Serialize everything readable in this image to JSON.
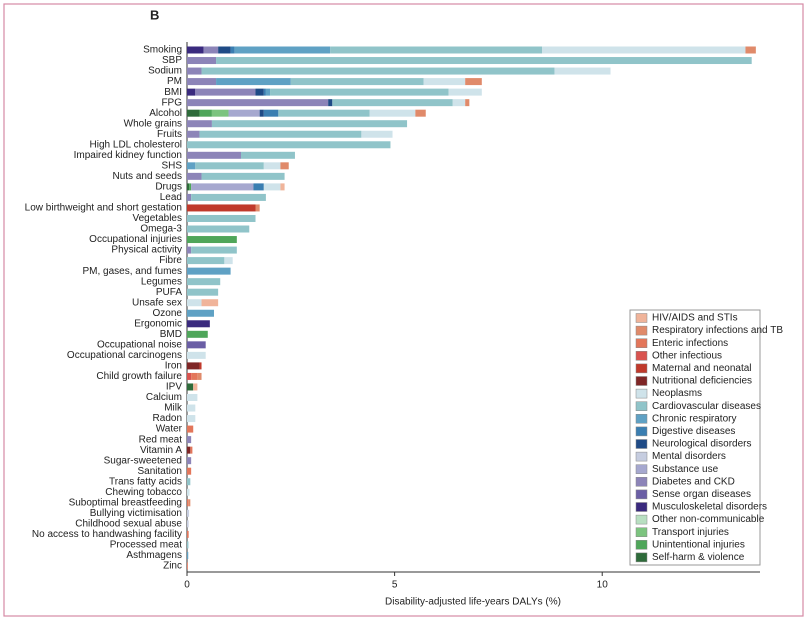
{
  "chart_data": {
    "type": "stacked-barh",
    "panel_label": "B",
    "x_label": "Disability-adjusted life-years DALYs (%)",
    "xlim": [
      0,
      13.8
    ],
    "xticks": [
      0,
      5,
      10
    ],
    "grid": false,
    "legend": "lower right",
    "categories": [
      "Smoking",
      "SBP",
      "Sodium",
      "PM",
      "BMI",
      "FPG",
      "Alcohol",
      "Whole grains",
      "Fruits",
      "High LDL cholesterol",
      "Impaired kidney function",
      "SHS",
      "Nuts and seeds",
      "Drugs",
      "Lead",
      "Low birthweight and short gestation",
      "Vegetables",
      "Omega-3",
      "Occupational injuries",
      "Physical activity",
      "Fibre",
      "PM, gases, and fumes",
      "Legumes",
      "PUFA",
      "Unsafe sex",
      "Ozone",
      "Ergonomic",
      "BMD",
      "Occupational noise",
      "Occupational carcinogens",
      "Iron",
      "Child growth failure",
      "IPV",
      "Calcium",
      "Milk",
      "Radon",
      "Water",
      "Red meat",
      "Vitamin A",
      "Sugar-sweetened",
      "Sanitation",
      "Trans fatty acids",
      "Chewing tobacco",
      "Suboptimal breastfeeding",
      "Bullying victimisation",
      "Childhood sexual abuse",
      "No access to handwashing facility",
      "Processed meat",
      "Asthmagens",
      "Zinc"
    ],
    "series": [
      {
        "name": "HIV/AIDS and STIs",
        "color": "#f0b49a",
        "values": [
          0,
          0,
          0,
          0,
          0,
          0,
          0,
          0,
          0,
          0,
          0,
          0,
          0,
          0.1,
          0,
          0,
          0,
          0,
          0,
          0,
          0,
          0,
          0,
          0,
          0.4,
          0,
          0,
          0,
          0,
          0,
          0,
          0,
          0.1,
          0,
          0,
          0,
          0,
          0,
          0,
          0,
          0,
          0,
          0,
          0,
          0,
          0,
          0,
          0,
          0,
          0
        ]
      },
      {
        "name": "Respiratory infections and TB",
        "color": "#e08a6a",
        "values": [
          0.25,
          0,
          0,
          0.4,
          0,
          0.1,
          0.25,
          0,
          0,
          0,
          0,
          0.2,
          0,
          0,
          0,
          0.1,
          0,
          0,
          0,
          0,
          0,
          0,
          0,
          0,
          0,
          0,
          0,
          0,
          0,
          0,
          0,
          0.1,
          0,
          0,
          0,
          0,
          0,
          0,
          0,
          0,
          0,
          0,
          0,
          0.05,
          0,
          0,
          0,
          0,
          0,
          0
        ]
      },
      {
        "name": "Enteric infections",
        "color": "#e3765a",
        "values": [
          0,
          0,
          0,
          0,
          0,
          0,
          0,
          0,
          0,
          0,
          0,
          0,
          0,
          0,
          0,
          0,
          0,
          0,
          0,
          0,
          0,
          0,
          0,
          0,
          0,
          0,
          0,
          0,
          0,
          0,
          0,
          0.15,
          0,
          0,
          0,
          0,
          0.15,
          0,
          0.05,
          0,
          0.1,
          0,
          0,
          0.03,
          0,
          0,
          0.04,
          0,
          0,
          0.02
        ]
      },
      {
        "name": "Other infectious",
        "color": "#d9534f",
        "values": [
          0,
          0,
          0,
          0,
          0,
          0,
          0,
          0,
          0,
          0,
          0,
          0,
          0,
          0,
          0,
          0,
          0,
          0,
          0,
          0,
          0,
          0,
          0,
          0,
          0,
          0,
          0,
          0,
          0,
          0,
          0,
          0.1,
          0,
          0,
          0,
          0,
          0,
          0,
          0,
          0,
          0,
          0,
          0,
          0,
          0,
          0,
          0,
          0,
          0,
          0
        ]
      },
      {
        "name": "Maternal and neonatal",
        "color": "#c0392b",
        "values": [
          0,
          0,
          0,
          0,
          0,
          0,
          0,
          0,
          0,
          0,
          0,
          0,
          0,
          0,
          0,
          1.65,
          0,
          0,
          0,
          0,
          0,
          0,
          0,
          0,
          0,
          0,
          0,
          0,
          0,
          0,
          0.05,
          0,
          0,
          0,
          0,
          0,
          0,
          0,
          0,
          0,
          0,
          0,
          0,
          0,
          0,
          0,
          0,
          0,
          0,
          0
        ]
      },
      {
        "name": "Nutritional deficiencies",
        "color": "#7f2626",
        "values": [
          0,
          0,
          0,
          0,
          0,
          0,
          0,
          0,
          0,
          0,
          0,
          0,
          0,
          0,
          0,
          0,
          0,
          0,
          0,
          0,
          0,
          0,
          0,
          0,
          0,
          0,
          0,
          0,
          0,
          0,
          0.3,
          0,
          0,
          0,
          0,
          0,
          0,
          0,
          0.08,
          0,
          0,
          0,
          0,
          0,
          0,
          0,
          0,
          0,
          0,
          0
        ]
      },
      {
        "name": "Neoplasms",
        "color": "#cfe3ea",
        "values": [
          4.9,
          0,
          1.35,
          1.0,
          0.8,
          0.3,
          1.1,
          0,
          0.75,
          0,
          0,
          0.4,
          0,
          0.4,
          0,
          0,
          0,
          0,
          0,
          0,
          0.2,
          0,
          0,
          0,
          0.35,
          0,
          0,
          0,
          0,
          0.45,
          0,
          0,
          0,
          0.25,
          0.2,
          0.2,
          0,
          0,
          0,
          0,
          0,
          0,
          0.06,
          0,
          0,
          0,
          0,
          0.02,
          0,
          0
        ]
      },
      {
        "name": "Cardiovascular diseases",
        "color": "#90c4c9",
        "values": [
          5.1,
          12.9,
          8.5,
          3.2,
          4.3,
          2.9,
          2.2,
          4.7,
          3.9,
          4.9,
          1.3,
          1.65,
          2.0,
          0,
          1.8,
          0,
          1.65,
          1.5,
          0,
          1.1,
          0.9,
          0,
          0.8,
          0.75,
          0,
          0,
          0,
          0,
          0,
          0,
          0,
          0,
          0,
          0,
          0,
          0,
          0,
          0,
          0,
          0,
          0,
          0.08,
          0,
          0,
          0,
          0,
          0,
          0.03,
          0,
          0
        ]
      },
      {
        "name": "Chronic respiratory",
        "color": "#5fa1c4",
        "values": [
          2.3,
          0,
          0,
          1.8,
          0.1,
          0,
          0,
          0,
          0,
          0,
          0,
          0.2,
          0,
          0,
          0,
          0,
          0,
          0,
          0,
          0,
          0,
          1.05,
          0,
          0,
          0,
          0.65,
          0,
          0,
          0,
          0,
          0,
          0,
          0,
          0,
          0,
          0,
          0,
          0,
          0,
          0,
          0,
          0,
          0,
          0,
          0,
          0,
          0,
          0,
          0.03,
          0
        ]
      },
      {
        "name": "Digestive diseases",
        "color": "#3a7eb1",
        "values": [
          0.1,
          0,
          0,
          0,
          0.05,
          0,
          0.35,
          0,
          0,
          0,
          0,
          0,
          0,
          0.25,
          0,
          0,
          0,
          0,
          0,
          0,
          0,
          0,
          0,
          0,
          0,
          0,
          0,
          0,
          0,
          0,
          0,
          0,
          0,
          0,
          0,
          0,
          0,
          0,
          0,
          0,
          0,
          0,
          0,
          0,
          0,
          0,
          0,
          0,
          0,
          0
        ]
      },
      {
        "name": "Neurological disorders",
        "color": "#1f4b86",
        "values": [
          0.3,
          0,
          0,
          0,
          0.2,
          0.1,
          0.1,
          0,
          0,
          0,
          0,
          0,
          0,
          0,
          0,
          0,
          0,
          0,
          0,
          0,
          0,
          0,
          0,
          0,
          0,
          0,
          0,
          0,
          0,
          0,
          0,
          0,
          0,
          0,
          0,
          0,
          0,
          0,
          0,
          0,
          0,
          0,
          0,
          0,
          0,
          0,
          0,
          0,
          0,
          0
        ]
      },
      {
        "name": "Mental disorders",
        "color": "#c6cde0",
        "values": [
          0,
          0,
          0,
          0,
          0,
          0,
          0,
          0,
          0,
          0,
          0,
          0,
          0,
          0,
          0,
          0,
          0,
          0,
          0,
          0,
          0,
          0,
          0,
          0,
          0,
          0,
          0,
          0,
          0,
          0,
          0,
          0,
          0,
          0,
          0,
          0,
          0,
          0,
          0,
          0,
          0,
          0,
          0,
          0,
          0.05,
          0.04,
          0,
          0,
          0,
          0
        ]
      },
      {
        "name": "Substance use",
        "color": "#a6a8cf",
        "values": [
          0,
          0,
          0,
          0,
          0,
          0,
          0.75,
          0,
          0,
          0,
          0,
          0,
          0,
          1.5,
          0,
          0,
          0,
          0,
          0,
          0,
          0,
          0,
          0,
          0,
          0,
          0,
          0,
          0,
          0,
          0,
          0,
          0,
          0,
          0,
          0,
          0,
          0,
          0,
          0,
          0,
          0,
          0,
          0,
          0,
          0,
          0,
          0,
          0,
          0,
          0
        ]
      },
      {
        "name": "Diabetes and CKD",
        "color": "#8c84b8",
        "values": [
          0.35,
          0.7,
          0.35,
          0.7,
          1.45,
          3.4,
          0,
          0.6,
          0.3,
          0,
          1.3,
          0,
          0.35,
          0,
          0.1,
          0,
          0,
          0,
          0,
          0.1,
          0,
          0,
          0,
          0,
          0,
          0,
          0,
          0,
          0,
          0,
          0,
          0,
          0,
          0,
          0,
          0,
          0,
          0.1,
          0,
          0.1,
          0,
          0,
          0,
          0,
          0,
          0,
          0,
          0,
          0,
          0
        ]
      },
      {
        "name": "Sense organ diseases",
        "color": "#6a5ea5",
        "values": [
          0,
          0,
          0,
          0,
          0,
          0,
          0,
          0,
          0,
          0,
          0,
          0,
          0,
          0,
          0,
          0,
          0,
          0,
          0,
          0,
          0,
          0,
          0,
          0,
          0,
          0,
          0,
          0,
          0.45,
          0,
          0,
          0,
          0,
          0,
          0,
          0,
          0,
          0,
          0,
          0,
          0,
          0,
          0,
          0,
          0,
          0,
          0,
          0,
          0,
          0
        ]
      },
      {
        "name": "Musculoskeletal disorders",
        "color": "#3a2a7e",
        "values": [
          0.4,
          0,
          0,
          0,
          0.2,
          0,
          0,
          0,
          0,
          0,
          0,
          0,
          0,
          0,
          0,
          0,
          0,
          0,
          0,
          0,
          0,
          0,
          0,
          0,
          0,
          0,
          0.55,
          0,
          0,
          0,
          0,
          0,
          0,
          0,
          0,
          0,
          0,
          0,
          0,
          0,
          0,
          0,
          0,
          0,
          0,
          0,
          0,
          0,
          0,
          0
        ]
      },
      {
        "name": "Other non-communicable",
        "color": "#b8dfc1",
        "values": [
          0,
          0,
          0,
          0,
          0,
          0,
          0,
          0,
          0,
          0,
          0,
          0,
          0,
          0,
          0,
          0,
          0,
          0,
          0,
          0,
          0,
          0,
          0,
          0,
          0,
          0,
          0,
          0,
          0,
          0,
          0,
          0,
          0,
          0,
          0,
          0,
          0,
          0,
          0,
          0,
          0,
          0,
          0,
          0,
          0,
          0,
          0,
          0,
          0,
          0
        ]
      },
      {
        "name": "Transport injuries",
        "color": "#7cc47f",
        "values": [
          0,
          0,
          0,
          0,
          0,
          0,
          0.4,
          0,
          0,
          0,
          0,
          0,
          0,
          0,
          0,
          0,
          0,
          0,
          0,
          0,
          0,
          0,
          0,
          0,
          0,
          0,
          0,
          0,
          0,
          0,
          0,
          0,
          0,
          0,
          0,
          0,
          0,
          0,
          0,
          0,
          0,
          0,
          0,
          0,
          0,
          0,
          0,
          0,
          0,
          0
        ]
      },
      {
        "name": "Unintentional injuries",
        "color": "#4fa65a",
        "values": [
          0,
          0,
          0,
          0,
          0,
          0,
          0.3,
          0,
          0,
          0,
          0,
          0,
          0,
          0.05,
          0,
          0,
          0,
          0,
          1.2,
          0,
          0,
          0,
          0,
          0,
          0,
          0,
          0,
          0.5,
          0,
          0,
          0,
          0,
          0,
          0,
          0,
          0,
          0,
          0,
          0,
          0,
          0,
          0,
          0,
          0,
          0,
          0,
          0,
          0,
          0,
          0
        ]
      },
      {
        "name": "Self-harm & violence",
        "color": "#2e6b3a",
        "values": [
          0,
          0,
          0,
          0,
          0,
          0,
          0.3,
          0,
          0,
          0,
          0,
          0,
          0,
          0.05,
          0,
          0,
          0,
          0,
          0,
          0,
          0,
          0,
          0,
          0,
          0,
          0,
          0,
          0,
          0,
          0,
          0,
          0,
          0.15,
          0,
          0,
          0,
          0,
          0,
          0,
          0,
          0,
          0,
          0,
          0,
          0,
          0,
          0,
          0,
          0,
          0
        ]
      }
    ]
  }
}
